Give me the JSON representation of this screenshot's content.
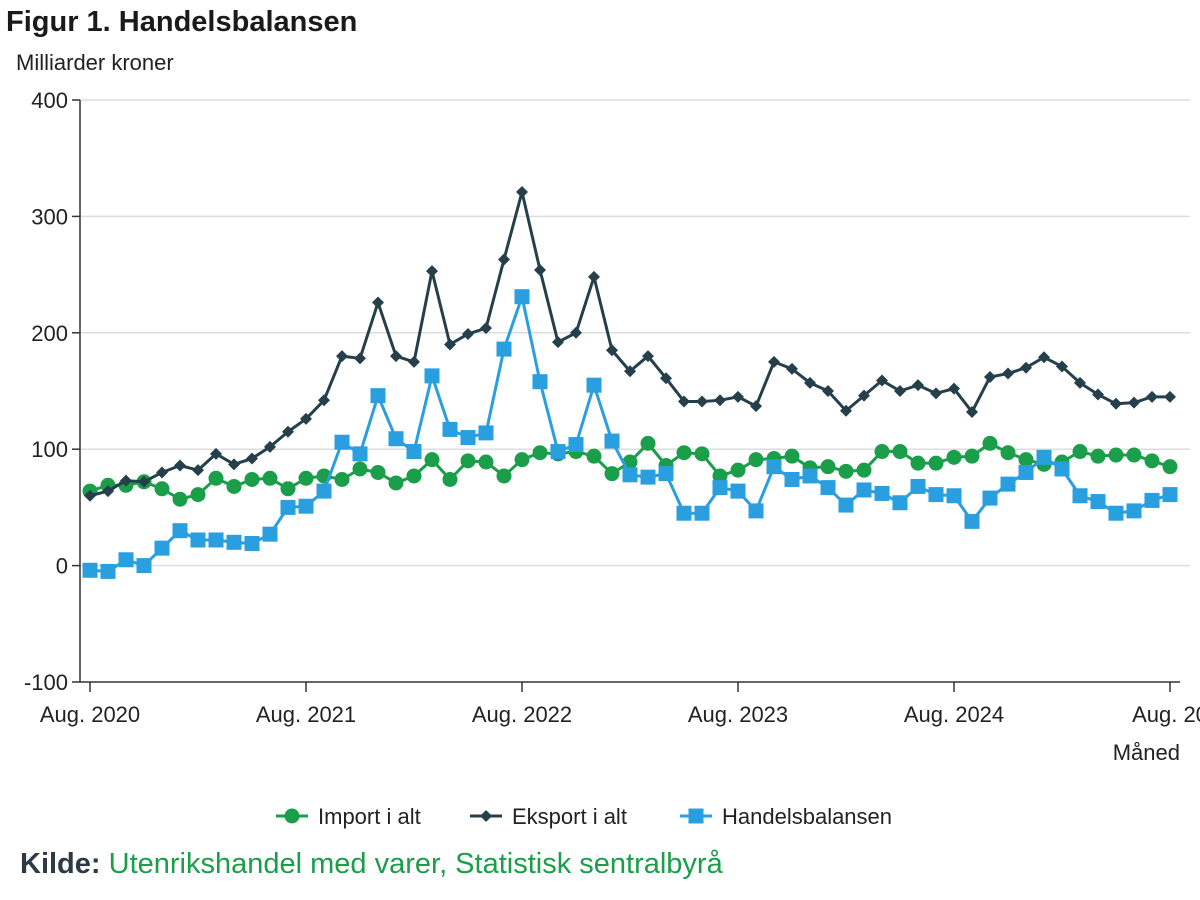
{
  "title": "Figur 1. Handelsbalansen",
  "source": {
    "label": "Kilde:",
    "text": "Utenrikshandel med varer, Statistisk sentralbyrå"
  },
  "colors": {
    "import": "#1a9e4a",
    "eksport": "#26404b",
    "balanse": "#2a9fe0",
    "grid": "#dddddd",
    "axis": "#333333"
  },
  "chart_data": {
    "type": "line",
    "ylabel": "Milliarder kroner",
    "xlabel": "Måned",
    "ylim": [
      -100,
      400
    ],
    "yticks": [
      400,
      300,
      200,
      100,
      0,
      -100
    ],
    "xtick_labels": [
      "Aug. 2020",
      "Aug. 2021",
      "Aug. 2022",
      "Aug. 2023",
      "Aug. 2024",
      "Aug. 20"
    ],
    "xtick_index": [
      0,
      12,
      24,
      36,
      48,
      60
    ],
    "grid": true,
    "legend_position": "bottom",
    "series": [
      {
        "name": "Import i alt",
        "key": "import",
        "values": [
          64,
          69,
          69,
          72,
          66,
          57,
          61,
          75,
          68,
          74,
          75,
          66,
          75,
          77,
          74,
          83,
          80,
          71,
          77,
          91,
          74,
          90,
          89,
          77,
          91,
          97,
          96,
          98,
          94,
          79,
          89,
          105,
          86,
          97,
          96,
          77,
          82,
          91,
          92,
          94,
          84,
          85,
          81,
          82,
          98,
          98,
          88,
          88,
          93,
          94,
          105,
          97,
          91,
          87,
          89,
          98,
          94,
          95,
          95,
          90,
          85
        ]
      },
      {
        "name": "Eksport i alt",
        "key": "eksport",
        "values": [
          60,
          64,
          73,
          72,
          80,
          86,
          82,
          96,
          87,
          92,
          102,
          115,
          126,
          142,
          180,
          178,
          226,
          180,
          175,
          253,
          190,
          199,
          204,
          263,
          321,
          254,
          192,
          200,
          248,
          185,
          167,
          180,
          161,
          141,
          141,
          142,
          145,
          137,
          175,
          169,
          157,
          150,
          133,
          146,
          159,
          150,
          155,
          148,
          152,
          132,
          162,
          165,
          170,
          179,
          171,
          157,
          147,
          139,
          140,
          145,
          145
        ]
      },
      {
        "name": "Handelsbalansen",
        "key": "balanse",
        "values": [
          -4,
          -5,
          5,
          0,
          15,
          30,
          22,
          22,
          20,
          19,
          27,
          50,
          51,
          64,
          106,
          96,
          146,
          109,
          98,
          163,
          117,
          110,
          114,
          186,
          231,
          158,
          98,
          104,
          155,
          107,
          78,
          76,
          79,
          45,
          45,
          67,
          64,
          47,
          85,
          74,
          77,
          67,
          52,
          65,
          62,
          54,
          68,
          61,
          60,
          38,
          58,
          70,
          80,
          93,
          83,
          60,
          55,
          45,
          47,
          56,
          61
        ]
      }
    ]
  }
}
